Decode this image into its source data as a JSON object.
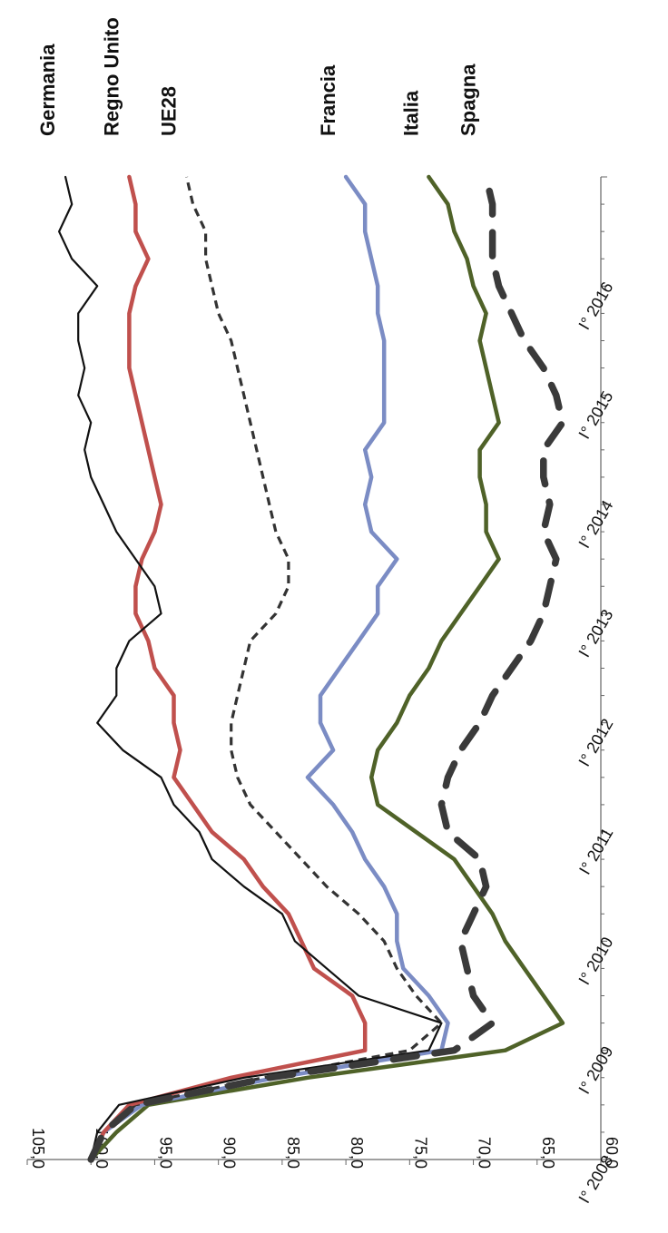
{
  "chart_data": {
    "type": "line",
    "orientation": "rotated-90-clockwise",
    "title": "",
    "xlabel": "",
    "ylabel": "",
    "ylim": [
      60,
      105
    ],
    "y_ticks": [
      "60,0",
      "65,0",
      "70,0",
      "75,0",
      "80,0",
      "85,0",
      "90,0",
      "95,0",
      "100,0",
      "105,0"
    ],
    "x_ticks": [
      "I° 2008",
      "I° 2009",
      "I° 2010",
      "I° 2011",
      "I° 2012",
      "I° 2013",
      "I° 2014",
      "I° 2015",
      "I° 2016"
    ],
    "x_tick_years": [
      2008,
      2009,
      2010,
      2011,
      2012,
      2013,
      2014,
      2015,
      2016
    ],
    "x_range": [
      2008,
      2017
    ],
    "grid": false,
    "legend_placement": "right",
    "series": [
      {
        "name": "Germania",
        "color": "#111111",
        "style": "thin",
        "points": [
          [
            2008.0,
            100.0
          ],
          [
            2008.25,
            99.5
          ],
          [
            2008.5,
            97.8
          ],
          [
            2008.75,
            88.0
          ],
          [
            2009.0,
            73.5
          ],
          [
            2009.25,
            72.5
          ],
          [
            2009.5,
            79.0
          ],
          [
            2009.75,
            81.5
          ],
          [
            2010.0,
            84.0
          ],
          [
            2010.25,
            85.0
          ],
          [
            2010.5,
            88.0
          ],
          [
            2010.75,
            90.5
          ],
          [
            2011.0,
            91.5
          ],
          [
            2011.25,
            93.5
          ],
          [
            2011.5,
            94.5
          ],
          [
            2011.75,
            97.5
          ],
          [
            2012.0,
            99.5
          ],
          [
            2012.25,
            98.0
          ],
          [
            2012.5,
            98.0
          ],
          [
            2012.75,
            97.0
          ],
          [
            2013.0,
            94.5
          ],
          [
            2013.25,
            95.0
          ],
          [
            2013.5,
            96.5
          ],
          [
            2013.75,
            98.0
          ],
          [
            2014.0,
            99.0
          ],
          [
            2014.25,
            100.0
          ],
          [
            2014.5,
            100.5
          ],
          [
            2014.75,
            100.0
          ],
          [
            2015.0,
            101.0
          ],
          [
            2015.25,
            100.5
          ],
          [
            2015.5,
            101.0
          ],
          [
            2015.75,
            101.0
          ],
          [
            2016.0,
            99.5
          ],
          [
            2016.25,
            101.5
          ],
          [
            2016.5,
            102.5
          ],
          [
            2016.75,
            101.5
          ],
          [
            2017.0,
            102.0
          ]
        ]
      },
      {
        "name": "Regno Unito",
        "color": "#c0504d",
        "style": "thick",
        "points": [
          [
            2008.0,
            100.0
          ],
          [
            2008.25,
            99.0
          ],
          [
            2008.5,
            97.0
          ],
          [
            2008.75,
            89.0
          ],
          [
            2009.0,
            78.5
          ],
          [
            2009.25,
            78.5
          ],
          [
            2009.5,
            79.5
          ],
          [
            2009.75,
            82.5
          ],
          [
            2010.0,
            83.5
          ],
          [
            2010.25,
            84.5
          ],
          [
            2010.5,
            86.5
          ],
          [
            2010.75,
            88.0
          ],
          [
            2011.0,
            90.5
          ],
          [
            2011.25,
            92.0
          ],
          [
            2011.5,
            93.5
          ],
          [
            2011.75,
            93.0
          ],
          [
            2012.0,
            93.5
          ],
          [
            2012.25,
            93.5
          ],
          [
            2012.5,
            95.0
          ],
          [
            2012.75,
            95.5
          ],
          [
            2013.0,
            96.5
          ],
          [
            2013.25,
            96.5
          ],
          [
            2013.5,
            96.0
          ],
          [
            2013.75,
            95.0
          ],
          [
            2014.0,
            94.5
          ],
          [
            2014.25,
            95.0
          ],
          [
            2014.5,
            95.5
          ],
          [
            2014.75,
            96.0
          ],
          [
            2015.0,
            96.5
          ],
          [
            2015.25,
            97.0
          ],
          [
            2015.5,
            97.0
          ],
          [
            2015.75,
            97.0
          ],
          [
            2016.0,
            96.5
          ],
          [
            2016.25,
            95.5
          ],
          [
            2016.5,
            96.5
          ],
          [
            2016.75,
            96.5
          ],
          [
            2017.0,
            97.0
          ]
        ]
      },
      {
        "name": "UE28",
        "color": "#333333",
        "style": "dashed",
        "points": [
          [
            2008.0,
            100.0
          ],
          [
            2008.25,
            99.0
          ],
          [
            2008.5,
            96.5
          ],
          [
            2008.75,
            86.5
          ],
          [
            2009.0,
            75.0
          ],
          [
            2009.25,
            72.5
          ],
          [
            2009.5,
            74.5
          ],
          [
            2009.75,
            76.0
          ],
          [
            2010.0,
            77.0
          ],
          [
            2010.25,
            79.0
          ],
          [
            2010.5,
            81.5
          ],
          [
            2010.75,
            83.5
          ],
          [
            2011.0,
            85.5
          ],
          [
            2011.25,
            87.5
          ],
          [
            2011.5,
            88.5
          ],
          [
            2011.75,
            89.0
          ],
          [
            2012.0,
            89.0
          ],
          [
            2012.25,
            88.5
          ],
          [
            2012.5,
            88.0
          ],
          [
            2012.75,
            87.5
          ],
          [
            2013.0,
            85.5
          ],
          [
            2013.25,
            84.5
          ],
          [
            2013.5,
            84.5
          ],
          [
            2013.75,
            85.5
          ],
          [
            2014.0,
            86.0
          ],
          [
            2014.25,
            86.5
          ],
          [
            2014.5,
            87.0
          ],
          [
            2014.75,
            87.5
          ],
          [
            2015.0,
            88.0
          ],
          [
            2015.25,
            88.5
          ],
          [
            2015.5,
            89.0
          ],
          [
            2015.75,
            90.0
          ],
          [
            2016.0,
            90.5
          ],
          [
            2016.25,
            91.0
          ],
          [
            2016.5,
            91.0
          ],
          [
            2016.75,
            92.0
          ],
          [
            2017.0,
            92.5
          ]
        ]
      },
      {
        "name": "Francia",
        "color": "#7b8cc4",
        "style": "thick",
        "points": [
          [
            2008.0,
            100.0
          ],
          [
            2008.25,
            99.0
          ],
          [
            2008.5,
            96.0
          ],
          [
            2008.75,
            85.5
          ],
          [
            2009.0,
            72.5
          ],
          [
            2009.25,
            72.0
          ],
          [
            2009.5,
            73.5
          ],
          [
            2009.75,
            75.5
          ],
          [
            2010.0,
            76.0
          ],
          [
            2010.25,
            76.0
          ],
          [
            2010.5,
            77.0
          ],
          [
            2010.75,
            78.5
          ],
          [
            2011.0,
            79.5
          ],
          [
            2011.25,
            81.0
          ],
          [
            2011.5,
            83.0
          ],
          [
            2011.75,
            81.0
          ],
          [
            2012.0,
            82.0
          ],
          [
            2012.25,
            82.0
          ],
          [
            2012.5,
            80.5
          ],
          [
            2012.75,
            79.0
          ],
          [
            2013.0,
            77.5
          ],
          [
            2013.25,
            77.5
          ],
          [
            2013.5,
            76.0
          ],
          [
            2013.75,
            78.0
          ],
          [
            2014.0,
            78.5
          ],
          [
            2014.25,
            78.0
          ],
          [
            2014.5,
            78.5
          ],
          [
            2014.75,
            77.0
          ],
          [
            2015.0,
            77.0
          ],
          [
            2015.25,
            77.0
          ],
          [
            2015.5,
            77.0
          ],
          [
            2015.75,
            77.5
          ],
          [
            2016.0,
            77.5
          ],
          [
            2016.25,
            78.0
          ],
          [
            2016.5,
            78.5
          ],
          [
            2016.75,
            78.5
          ],
          [
            2017.0,
            80.0
          ]
        ]
      },
      {
        "name": "Italia",
        "color": "#4f6228",
        "style": "thick",
        "points": [
          [
            2008.0,
            100.0
          ],
          [
            2008.25,
            98.0
          ],
          [
            2008.5,
            95.5
          ],
          [
            2008.75,
            83.0
          ],
          [
            2009.0,
            67.5
          ],
          [
            2009.25,
            63.0
          ],
          [
            2009.5,
            64.5
          ],
          [
            2009.75,
            66.0
          ],
          [
            2010.0,
            67.5
          ],
          [
            2010.25,
            68.5
          ],
          [
            2010.5,
            70.0
          ],
          [
            2010.75,
            71.5
          ],
          [
            2011.0,
            74.5
          ],
          [
            2011.25,
            77.5
          ],
          [
            2011.5,
            78.0
          ],
          [
            2011.75,
            77.5
          ],
          [
            2012.0,
            76.0
          ],
          [
            2012.25,
            75.0
          ],
          [
            2012.5,
            73.5
          ],
          [
            2012.75,
            72.5
          ],
          [
            2013.0,
            71.0
          ],
          [
            2013.25,
            69.5
          ],
          [
            2013.5,
            68.0
          ],
          [
            2013.75,
            69.0
          ],
          [
            2014.0,
            69.0
          ],
          [
            2014.25,
            69.5
          ],
          [
            2014.5,
            69.5
          ],
          [
            2014.75,
            68.0
          ],
          [
            2015.0,
            68.5
          ],
          [
            2015.25,
            69.0
          ],
          [
            2015.5,
            69.5
          ],
          [
            2015.75,
            69.0
          ],
          [
            2016.0,
            70.0
          ],
          [
            2016.25,
            70.5
          ],
          [
            2016.5,
            71.5
          ],
          [
            2016.75,
            72.0
          ],
          [
            2017.0,
            73.5
          ]
        ]
      },
      {
        "name": "Spagna",
        "color": "#3a3a3a",
        "style": "long-dash",
        "points": [
          [
            2008.0,
            100.0
          ],
          [
            2008.25,
            99.0
          ],
          [
            2008.5,
            96.5
          ],
          [
            2008.75,
            86.0
          ],
          [
            2009.0,
            71.5
          ],
          [
            2009.25,
            68.5
          ],
          [
            2009.5,
            70.0
          ],
          [
            2009.75,
            70.5
          ],
          [
            2010.0,
            71.0
          ],
          [
            2010.25,
            70.0
          ],
          [
            2010.5,
            69.0
          ],
          [
            2010.75,
            69.5
          ],
          [
            2011.0,
            72.0
          ],
          [
            2011.25,
            72.5
          ],
          [
            2011.5,
            72.0
          ],
          [
            2011.75,
            71.0
          ],
          [
            2012.0,
            69.5
          ],
          [
            2012.25,
            68.5
          ],
          [
            2012.5,
            67.0
          ],
          [
            2012.75,
            65.5
          ],
          [
            2013.0,
            64.5
          ],
          [
            2013.25,
            64.0
          ],
          [
            2013.5,
            63.5
          ],
          [
            2013.75,
            64.5
          ],
          [
            2014.0,
            64.0
          ],
          [
            2014.25,
            64.5
          ],
          [
            2014.5,
            64.5
          ],
          [
            2014.75,
            63.0
          ],
          [
            2015.0,
            63.5
          ],
          [
            2015.25,
            64.5
          ],
          [
            2015.5,
            66.0
          ],
          [
            2015.75,
            67.0
          ],
          [
            2016.0,
            68.0
          ],
          [
            2016.25,
            68.5
          ],
          [
            2016.5,
            68.5
          ],
          [
            2016.75,
            68.5
          ],
          [
            2017.0,
            69.0
          ]
        ]
      }
    ]
  }
}
